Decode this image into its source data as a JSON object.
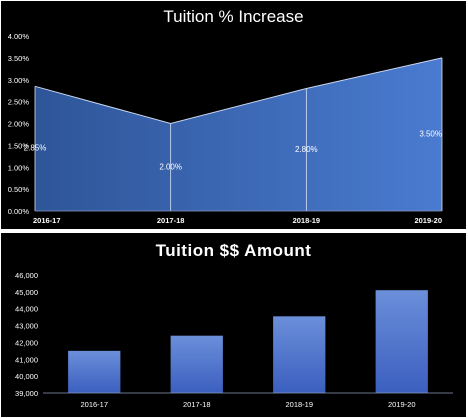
{
  "colors": {
    "background": "#000000",
    "area_dark": "#2e5598",
    "area_light": "#4a7bd0",
    "bar_top": "#6b8fd9",
    "bar_bottom": "#3b5fbf",
    "text": "#ffffff"
  },
  "chart_data": [
    {
      "type": "area",
      "title": "Tuition % Increase",
      "categories": [
        "2016-17",
        "2017-18",
        "2018-19",
        "2019-20"
      ],
      "values": [
        2.85,
        2.0,
        2.8,
        3.5
      ],
      "data_labels": [
        "2.85%",
        "2.00%",
        "2.80%",
        "3.50%"
      ],
      "yticks": [
        "0.00%",
        "0.50%",
        "1.00%",
        "1.50%",
        "2.00%",
        "2.50%",
        "3.00%",
        "3.50%",
        "4.00%"
      ],
      "ylim": [
        0,
        4
      ],
      "grid": false,
      "legend": "none"
    },
    {
      "type": "bar",
      "title": "Tuition $$ Amount",
      "categories": [
        "2016-17",
        "2017-18",
        "2018-19",
        "2019-20"
      ],
      "values": [
        41500,
        42400,
        43550,
        45100
      ],
      "yticks": [
        "39,000",
        "40,000",
        "41,000",
        "42,000",
        "43,000",
        "44,000",
        "45,000",
        "46,000"
      ],
      "ylim": [
        39000,
        46000
      ],
      "grid": false,
      "legend": "none"
    }
  ]
}
